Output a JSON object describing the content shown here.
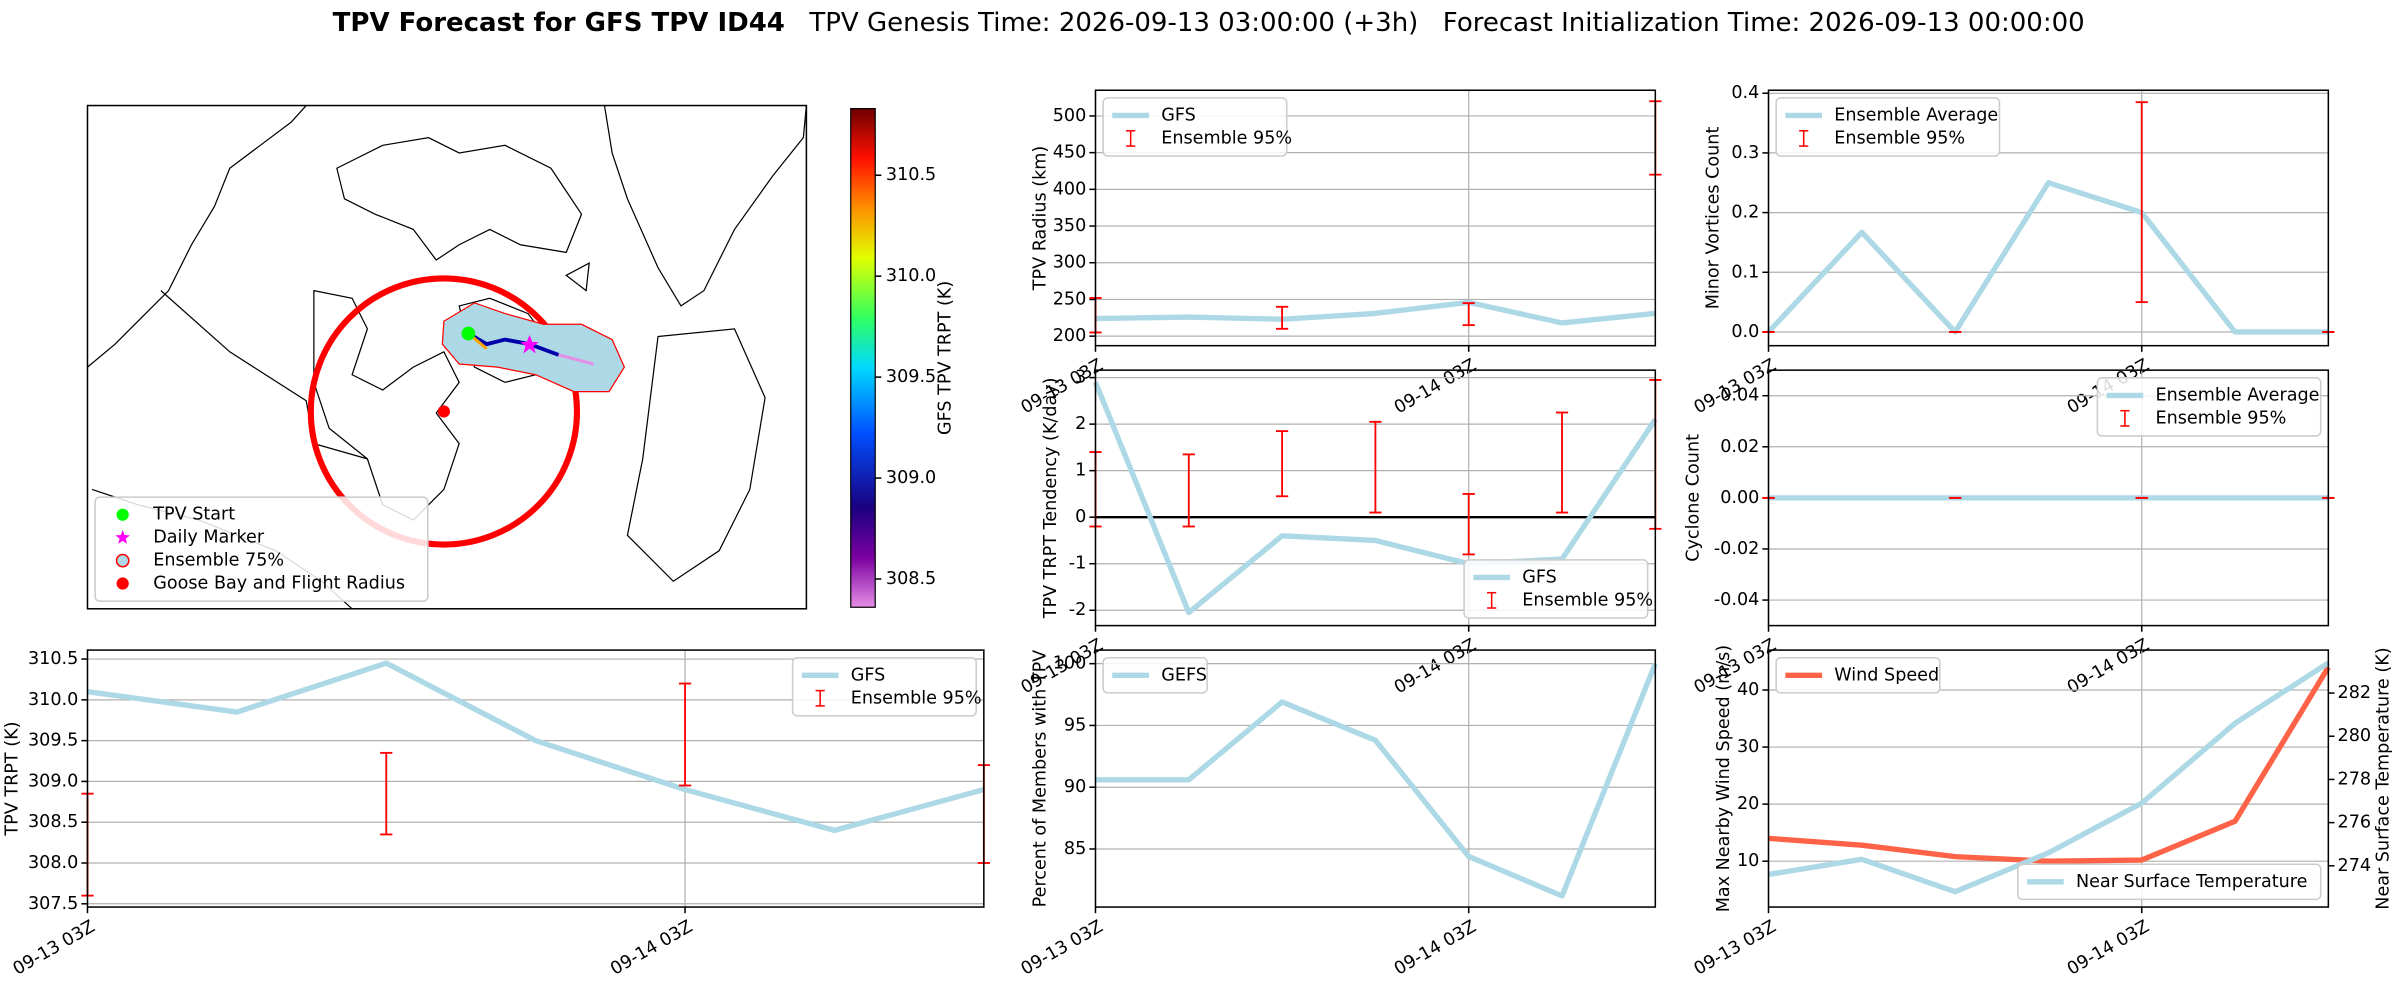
{
  "title": {
    "main": "TPV Forecast for GFS TPV ID44",
    "genesis": "TPV Genesis Time: 2026-09-13 03:00:00 (+3h)",
    "init": "Forecast Initialization Time: 2026-09-13 00:00:00"
  },
  "chart_data": [
    {
      "type": "map",
      "legend": "lower left",
      "legend_items": [
        {
          "name": "TPV Start",
          "color": "#00ff00",
          "marker": "circle"
        },
        {
          "name": "Daily Marker",
          "color": "#ff00ff",
          "marker": "star"
        },
        {
          "name": "Ensemble 75%",
          "color": "#add8e6",
          "marker": "ring"
        },
        {
          "name": "Goose Bay and Flight Radius",
          "color": "#ff0000",
          "marker": "circle"
        }
      ],
      "colorbar": {
        "label": "GFS TPV TRPT (K)",
        "lim": [
          308.36,
          310.83
        ],
        "ticks": [
          308.5,
          {
            "value": 309,
            "label": "309.0"
          },
          309.5,
          {
            "value": 310,
            "label": "310.0"
          },
          310.5
        ]
      }
    },
    {
      "type": "line",
      "ylabel": "TPV Radius (km)",
      "x": [
        0,
        6,
        12,
        18,
        24,
        30,
        36
      ],
      "xlim": [
        0,
        36
      ],
      "xticks": [
        {
          "value": 0,
          "label": "09-13 03Z"
        },
        {
          "value": 24,
          "label": "09-14 03Z"
        }
      ],
      "ylim": [
        187,
        535
      ],
      "yticks": [
        200,
        250,
        300,
        350,
        400,
        450,
        500
      ],
      "grid": true,
      "legend": "upper left",
      "series": [
        {
          "name": "GFS",
          "color": "#add8e6",
          "values": [
            224,
            226,
            223,
            231,
            246,
            218,
            231
          ]
        }
      ],
      "errorbars": {
        "name": "Ensemble 95%",
        "color": "#ff0000",
        "x": [
          0,
          12,
          24,
          36
        ],
        "low": [
          205,
          210,
          215,
          420
        ],
        "high": [
          252,
          240,
          245,
          520
        ]
      }
    },
    {
      "type": "line",
      "ylabel": "Minor Vortices Count",
      "x": [
        0,
        6,
        12,
        18,
        24,
        30,
        36
      ],
      "xlim": [
        0,
        36
      ],
      "xticks": [
        {
          "value": 0,
          "label": "09-13 03Z"
        },
        {
          "value": 24,
          "label": "09-14 03Z"
        }
      ],
      "ylim": [
        -0.023,
        0.405
      ],
      "yticks": [
        {
          "value": 0,
          "label": "0.0"
        },
        0.1,
        0.2,
        0.3,
        0.4
      ],
      "grid": true,
      "legend": "upper left",
      "series": [
        {
          "name": "Ensemble Average",
          "color": "#add8e6",
          "values": [
            0,
            0.167,
            0,
            0.25,
            0.2,
            0,
            0
          ]
        }
      ],
      "errorbars": {
        "name": "Ensemble 95%",
        "color": "#ff0000",
        "x": [
          0,
          12,
          24,
          36
        ],
        "low": [
          0,
          0,
          0.05,
          0
        ],
        "high": [
          0,
          0,
          0.385,
          0
        ]
      }
    },
    {
      "type": "line",
      "ylabel": "TPV TRPT Tendency (K/day)",
      "x": [
        0,
        6,
        12,
        18,
        24,
        30,
        36
      ],
      "xlim": [
        0,
        36
      ],
      "xticks": [
        {
          "value": 0,
          "label": "09-13 03Z"
        },
        {
          "value": 24,
          "label": "09-14 03Z"
        }
      ],
      "ylim": [
        -2.33,
        3.16
      ],
      "yticks": [
        -2,
        -1,
        0,
        1,
        2,
        3
      ],
      "grid": true,
      "legend": "lower right",
      "zero_line": true,
      "series": [
        {
          "name": "GFS",
          "color": "#add8e6",
          "values": [
            2.9,
            -2.05,
            -0.4,
            -0.5,
            -1.0,
            -0.9,
            2.1
          ]
        }
      ],
      "errorbars": {
        "name": "Ensemble 95%",
        "color": "#ff0000",
        "x": [
          0,
          6,
          12,
          18,
          24,
          30,
          36
        ],
        "low": [
          -0.2,
          -0.2,
          0.45,
          0.1,
          -0.8,
          0.1,
          -0.25
        ],
        "high": [
          1.4,
          1.35,
          1.85,
          2.05,
          0.5,
          2.25,
          2.95
        ]
      }
    },
    {
      "type": "line",
      "ylabel": "Cyclone Count",
      "x": [
        0,
        6,
        12,
        18,
        24,
        30,
        36
      ],
      "xlim": [
        0,
        36
      ],
      "xticks": [
        {
          "value": 0,
          "label": "09-13 03Z"
        },
        {
          "value": 24,
          "label": "09-14 03Z"
        }
      ],
      "ylim": [
        -0.05,
        0.05
      ],
      "yticks": [
        -0.04,
        -0.02,
        {
          "value": 0,
          "label": "0.00"
        },
        0.02,
        0.04
      ],
      "grid": true,
      "legend": "upper right",
      "series": [
        {
          "name": "Ensemble Average",
          "color": "#add8e6",
          "values": [
            0,
            0,
            0,
            0,
            0,
            0,
            0
          ]
        }
      ],
      "errorbars": {
        "name": "Ensemble 95%",
        "color": "#ff0000",
        "x": [
          0,
          12,
          24,
          36
        ],
        "low": [
          0,
          0,
          0,
          0
        ],
        "high": [
          0,
          0,
          0,
          0
        ]
      }
    },
    {
      "type": "line",
      "ylabel": "TPV TRPT (K)",
      "x": [
        0,
        6,
        12,
        18,
        24,
        30,
        36
      ],
      "xlim": [
        0,
        36
      ],
      "xticks": [
        {
          "value": 0,
          "label": "09-13 03Z"
        },
        {
          "value": 24,
          "label": "09-14 03Z"
        }
      ],
      "ylim": [
        307.46,
        310.61
      ],
      "yticks": [
        307.5,
        {
          "value": 308,
          "label": "308.0"
        },
        308.5,
        {
          "value": 309,
          "label": "309.0"
        },
        309.5,
        {
          "value": 310,
          "label": "310.0"
        },
        310.5
      ],
      "grid": true,
      "legend": "upper right",
      "series": [
        {
          "name": "GFS",
          "color": "#add8e6",
          "values": [
            310.1,
            309.85,
            310.45,
            309.5,
            308.9,
            308.4,
            308.9
          ]
        }
      ],
      "errorbars": {
        "name": "Ensemble 95%",
        "color": "#ff0000",
        "x": [
          0,
          12,
          24,
          36
        ],
        "low": [
          307.6,
          308.35,
          308.95,
          308.0
        ],
        "high": [
          308.85,
          309.35,
          310.2,
          309.2
        ]
      }
    },
    {
      "type": "line",
      "ylabel": "Percent of Members with TPV",
      "x": [
        0,
        6,
        12,
        18,
        24,
        30,
        36
      ],
      "xlim": [
        0,
        36
      ],
      "xticks": [
        {
          "value": 0,
          "label": "09-13 03Z"
        },
        {
          "value": 24,
          "label": "09-14 03Z"
        }
      ],
      "ylim": [
        80.3,
        101.1
      ],
      "yticks": [
        85,
        90,
        95,
        100
      ],
      "grid": true,
      "legend": "upper left",
      "series": [
        {
          "name": "GEFS",
          "color": "#add8e6",
          "values": [
            90.6,
            90.6,
            96.9,
            93.8,
            84.4,
            81.2,
            100
          ]
        }
      ]
    },
    {
      "type": "line",
      "ylabel": "Max Nearby Wind Speed (m/s)",
      "ylabel_color": "#ff6347",
      "y2label": "Near Surface Temperature (K)",
      "y2label_color": "#4169e1",
      "x": [
        0,
        6,
        12,
        18,
        24,
        30,
        36
      ],
      "xlim": [
        0,
        36
      ],
      "xticks": [
        {
          "value": 0,
          "label": "09-13 03Z"
        },
        {
          "value": 24,
          "label": "09-14 03Z"
        }
      ],
      "ylim": [
        1.96,
        47
      ],
      "yticks": [
        10,
        20,
        30,
        40
      ],
      "y2lim": [
        272.09,
        283.99
      ],
      "y2ticks": [
        274,
        276,
        278,
        280,
        282
      ],
      "grid": true,
      "legend": "upper left",
      "y2_legend": "lower right",
      "series": [
        {
          "name": "Wind Speed",
          "color": "#ff6347",
          "values": [
            14,
            12.8,
            10.8,
            10,
            10.2,
            17,
            44
          ]
        },
        {
          "name": "Near Surface Temperature",
          "color": "#add8e6",
          "axis": "y2",
          "values": [
            273.6,
            274.3,
            272.8,
            274.6,
            276.9,
            280.6,
            283.4
          ]
        }
      ]
    }
  ]
}
